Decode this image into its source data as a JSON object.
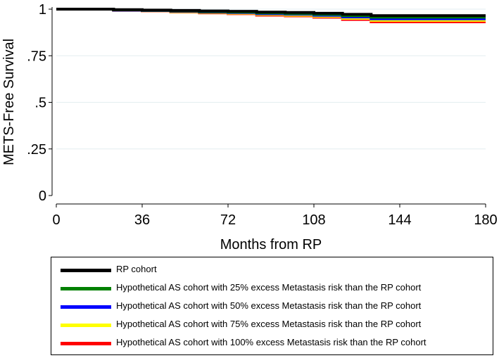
{
  "chart_data": {
    "type": "line",
    "subtype": "step",
    "xlabel": "Months from RP",
    "ylabel": "METS-Free Survival",
    "xlim": [
      0,
      180
    ],
    "ylim": [
      0,
      1
    ],
    "xticks": [
      0,
      36,
      72,
      108,
      144,
      180
    ],
    "xtick_labels": [
      "0",
      "36",
      "72",
      "108",
      "144",
      "180"
    ],
    "yticks": [
      0,
      0.25,
      0.5,
      0.75,
      1
    ],
    "ytick_labels": [
      "0",
      ".25",
      ".5",
      ".75",
      "1"
    ],
    "grid": "horizontal",
    "legend_position": "bottom",
    "series": [
      {
        "name": "RP cohort",
        "color": "#000000",
        "x": [
          0,
          24,
          36,
          48,
          60,
          72,
          84,
          96,
          108,
          120,
          132,
          180
        ],
        "y": [
          1.0,
          0.997,
          0.995,
          0.993,
          0.99,
          0.988,
          0.984,
          0.982,
          0.978,
          0.972,
          0.965,
          0.965
        ]
      },
      {
        "name": "Hypothetical AS cohort with 25% excess Metastasis risk than the RP cohort",
        "color": "#008000",
        "x": [
          0,
          24,
          36,
          48,
          60,
          72,
          84,
          96,
          108,
          120,
          132,
          180
        ],
        "y": [
          1.0,
          0.996,
          0.994,
          0.991,
          0.987,
          0.985,
          0.98,
          0.977,
          0.972,
          0.965,
          0.957,
          0.957
        ]
      },
      {
        "name": "Hypothetical AS cohort with 50% excess Metastasis risk than the RP cohort",
        "color": "#0000ff",
        "x": [
          0,
          24,
          36,
          48,
          60,
          72,
          84,
          96,
          108,
          120,
          132,
          180
        ],
        "y": [
          1.0,
          0.995,
          0.993,
          0.989,
          0.985,
          0.982,
          0.976,
          0.973,
          0.967,
          0.958,
          0.948,
          0.948
        ]
      },
      {
        "name": "Hypothetical AS cohort with 75% excess Metastasis risk than the RP cohort",
        "color": "#ffff00",
        "x": [
          0,
          24,
          36,
          48,
          60,
          72,
          84,
          96,
          108,
          120,
          132,
          180
        ],
        "y": [
          1.0,
          0.995,
          0.992,
          0.987,
          0.983,
          0.979,
          0.972,
          0.968,
          0.962,
          0.951,
          0.94,
          0.94
        ]
      },
      {
        "name": "Hypothetical AS cohort with 100% excess Metastasis risk than the RP cohort",
        "color": "#ff0000",
        "x": [
          0,
          24,
          36,
          48,
          60,
          72,
          84,
          96,
          108,
          120,
          132,
          180
        ],
        "y": [
          1.0,
          0.994,
          0.991,
          0.985,
          0.98,
          0.976,
          0.968,
          0.964,
          0.957,
          0.945,
          0.932,
          0.932
        ]
      }
    ]
  }
}
